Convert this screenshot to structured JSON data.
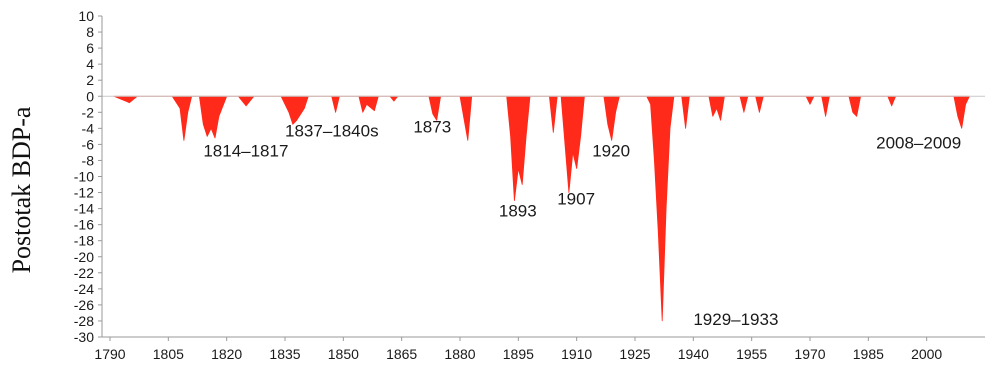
{
  "chart_data": {
    "type": "area",
    "title": "",
    "ylabel": "Postotak BDP-a",
    "xlabel": "",
    "xlim": [
      1790,
      2015
    ],
    "ylim": [
      -30,
      10
    ],
    "x_ticks": [
      "1790",
      "1805",
      "1820",
      "1835",
      "1850",
      "1865",
      "1880",
      "1895",
      "1910",
      "1925",
      "1940",
      "1955",
      "1970",
      "1985",
      "2000"
    ],
    "y_ticks": [
      "10",
      "8",
      "6",
      "4",
      "2",
      "0",
      "-2",
      "-4",
      "-6",
      "-8",
      "-10",
      "-12",
      "-14",
      "-16",
      "-18",
      "-20",
      "-22",
      "-24",
      "-26",
      "-28",
      "-30"
    ],
    "grid": false,
    "legend": "none",
    "series": [
      {
        "color": "#ff2a1a",
        "points": [
          [
            1791,
            0
          ],
          [
            1795,
            -0.8
          ],
          [
            1797,
            0
          ],
          [
            1806,
            0
          ],
          [
            1808,
            -1.5
          ],
          [
            1809,
            -5.5
          ],
          [
            1810,
            -2
          ],
          [
            1811,
            0
          ],
          [
            1813,
            0
          ],
          [
            1814,
            -3.5
          ],
          [
            1815,
            -5
          ],
          [
            1816,
            -4
          ],
          [
            1817,
            -5.2
          ],
          [
            1818,
            -2.5
          ],
          [
            1820,
            0
          ],
          [
            1823,
            0
          ],
          [
            1825,
            -1.2
          ],
          [
            1827,
            0
          ],
          [
            1834,
            0
          ],
          [
            1836,
            -2
          ],
          [
            1837,
            -3.5
          ],
          [
            1838,
            -3
          ],
          [
            1840,
            -1.5
          ],
          [
            1841,
            0
          ],
          [
            1847,
            0
          ],
          [
            1848,
            -2
          ],
          [
            1849,
            0
          ],
          [
            1854,
            0
          ],
          [
            1855,
            -2
          ],
          [
            1856,
            -1
          ],
          [
            1858,
            -1.8
          ],
          [
            1859,
            0
          ],
          [
            1862,
            0
          ],
          [
            1863,
            -0.6
          ],
          [
            1864,
            0
          ],
          [
            1872,
            0
          ],
          [
            1873,
            -2.2
          ],
          [
            1874,
            -3
          ],
          [
            1875,
            0
          ],
          [
            1880,
            0
          ],
          [
            1882,
            -5.5
          ],
          [
            1883,
            0
          ],
          [
            1892,
            0
          ],
          [
            1893,
            -5
          ],
          [
            1894,
            -13
          ],
          [
            1895,
            -9
          ],
          [
            1896,
            -11
          ],
          [
            1897,
            -5
          ],
          [
            1898,
            0
          ],
          [
            1903,
            0
          ],
          [
            1904,
            -4.5
          ],
          [
            1905,
            0
          ],
          [
            1906,
            0
          ],
          [
            1907,
            -6
          ],
          [
            1908,
            -12
          ],
          [
            1909,
            -7
          ],
          [
            1910,
            -9
          ],
          [
            1911,
            -5
          ],
          [
            1912,
            0
          ],
          [
            1917,
            0
          ],
          [
            1918,
            -3.5
          ],
          [
            1919,
            -5.5
          ],
          [
            1920,
            -2
          ],
          [
            1921,
            0
          ],
          [
            1928,
            0
          ],
          [
            1929,
            -1
          ],
          [
            1930,
            -8
          ],
          [
            1931,
            -17
          ],
          [
            1932,
            -28
          ],
          [
            1933,
            -14
          ],
          [
            1934,
            -4
          ],
          [
            1935,
            0
          ],
          [
            1937,
            0
          ],
          [
            1938,
            -4
          ],
          [
            1939,
            0
          ],
          [
            1944,
            0
          ],
          [
            1945,
            -2.5
          ],
          [
            1946,
            -1.5
          ],
          [
            1947,
            -3
          ],
          [
            1948,
            0
          ],
          [
            1952,
            0
          ],
          [
            1953,
            -2
          ],
          [
            1954,
            0
          ],
          [
            1956,
            0
          ],
          [
            1957,
            -2
          ],
          [
            1958,
            0
          ],
          [
            1969,
            0
          ],
          [
            1970,
            -1
          ],
          [
            1971,
            0
          ],
          [
            1973,
            0
          ],
          [
            1974,
            -2.5
          ],
          [
            1975,
            0
          ],
          [
            1980,
            0
          ],
          [
            1981,
            -2
          ],
          [
            1982,
            -2.5
          ],
          [
            1983,
            0
          ],
          [
            1990,
            0
          ],
          [
            1991,
            -1.2
          ],
          [
            1992,
            0
          ],
          [
            2007,
            0
          ],
          [
            2008,
            -2.5
          ],
          [
            2009,
            -4
          ],
          [
            2010,
            -1
          ],
          [
            2011,
            0
          ]
        ]
      }
    ],
    "annotations": [
      {
        "text": "1814–1817",
        "x": 1814,
        "y": -7.5
      },
      {
        "text": "1837–1840s",
        "x": 1835,
        "y": -5
      },
      {
        "text": "1873",
        "x": 1868,
        "y": -4.5
      },
      {
        "text": "1893",
        "x": 1890,
        "y": -15
      },
      {
        "text": "1907",
        "x": 1905,
        "y": -13.5
      },
      {
        "text": "1920",
        "x": 1914,
        "y": -7.5
      },
      {
        "text": "1929–1933",
        "x": 1940,
        "y": -28.5
      },
      {
        "text": "2008–2009",
        "x": 1987,
        "y": -6.5
      }
    ]
  }
}
